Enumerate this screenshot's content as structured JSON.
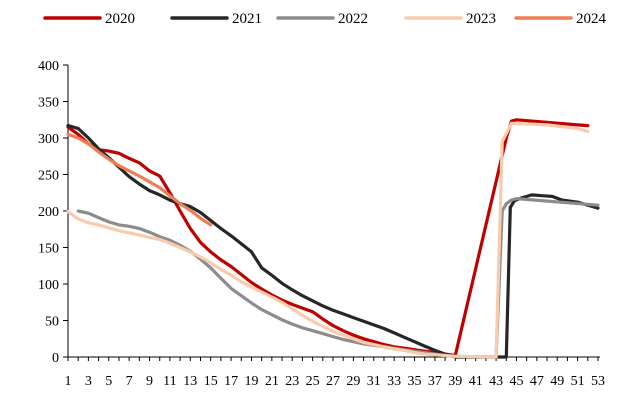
{
  "chart_data": {
    "type": "line",
    "title": "",
    "xlabel": "",
    "ylabel": "",
    "xlim": [
      1,
      53
    ],
    "ylim": [
      0,
      400
    ],
    "y_ticks": [
      0,
      50,
      100,
      150,
      200,
      250,
      300,
      350,
      400
    ],
    "x_tick_labels": [
      "1",
      "3",
      "5",
      "7",
      "9",
      "11",
      "13",
      "15",
      "17",
      "19",
      "21",
      "23",
      "25",
      "27",
      "29",
      "31",
      "33",
      "35",
      "37",
      "39",
      "41",
      "43",
      "45",
      "47",
      "49",
      "51",
      "53"
    ],
    "grid": false,
    "legend_position": "top",
    "series": [
      {
        "name": "2020",
        "color": "#c00000",
        "points": [
          [
            1,
            315
          ],
          [
            2,
            305
          ],
          [
            3,
            292
          ],
          [
            4,
            284
          ],
          [
            5,
            282
          ],
          [
            6,
            279
          ],
          [
            7,
            272
          ],
          [
            8,
            266
          ],
          [
            9,
            255
          ],
          [
            10,
            248
          ],
          [
            11,
            225
          ],
          [
            12,
            200
          ],
          [
            13,
            176
          ],
          [
            14,
            157
          ],
          [
            15,
            144
          ],
          [
            16,
            133
          ],
          [
            17,
            124
          ],
          [
            18,
            113
          ],
          [
            19,
            102
          ],
          [
            20,
            93
          ],
          [
            21,
            85
          ],
          [
            22,
            78
          ],
          [
            23,
            72
          ],
          [
            24,
            67
          ],
          [
            25,
            62
          ],
          [
            26,
            52
          ],
          [
            27,
            43
          ],
          [
            28,
            36
          ],
          [
            29,
            30
          ],
          [
            30,
            25
          ],
          [
            31,
            21
          ],
          [
            32,
            17
          ],
          [
            33,
            14
          ],
          [
            34,
            12
          ],
          [
            35,
            10
          ],
          [
            36,
            8
          ],
          [
            37,
            6
          ],
          [
            38,
            4
          ],
          [
            39,
            2
          ],
          [
            44,
            300
          ],
          [
            44.5,
            323
          ],
          [
            45,
            325
          ],
          [
            51,
            318
          ],
          [
            52,
            317
          ]
        ]
      },
      {
        "name": "2021",
        "color": "#262626",
        "points": [
          [
            1,
            317
          ],
          [
            2,
            313
          ],
          [
            3,
            300
          ],
          [
            4,
            285
          ],
          [
            5,
            273
          ],
          [
            6,
            260
          ],
          [
            7,
            247
          ],
          [
            8,
            237
          ],
          [
            9,
            228
          ],
          [
            10,
            222
          ],
          [
            11,
            215
          ],
          [
            12,
            210
          ],
          [
            13,
            206
          ],
          [
            14,
            198
          ],
          [
            15,
            187
          ],
          [
            16,
            176
          ],
          [
            17,
            166
          ],
          [
            18,
            155
          ],
          [
            19,
            144
          ],
          [
            20,
            122
          ],
          [
            21,
            112
          ],
          [
            22,
            101
          ],
          [
            23,
            92
          ],
          [
            24,
            84
          ],
          [
            25,
            77
          ],
          [
            26,
            70
          ],
          [
            27,
            64
          ],
          [
            28,
            59
          ],
          [
            29,
            54
          ],
          [
            30,
            49
          ],
          [
            31,
            44
          ],
          [
            32,
            39
          ],
          [
            33,
            33
          ],
          [
            34,
            27
          ],
          [
            35,
            21
          ],
          [
            36,
            15
          ],
          [
            37,
            9
          ],
          [
            38,
            4
          ],
          [
            39,
            0
          ],
          [
            44,
            0
          ],
          [
            44.4,
            205
          ],
          [
            44.8,
            214
          ],
          [
            45.5,
            218
          ],
          [
            46.5,
            222
          ],
          [
            47.5,
            221
          ],
          [
            48.5,
            220
          ],
          [
            49.5,
            215
          ],
          [
            51,
            212
          ],
          [
            53,
            204
          ]
        ]
      },
      {
        "name": "2022",
        "color": "#8c8c8c",
        "points": [
          [
            2,
            200
          ],
          [
            3,
            197
          ],
          [
            4,
            191
          ],
          [
            5,
            185
          ],
          [
            6,
            181
          ],
          [
            7,
            179
          ],
          [
            8,
            176
          ],
          [
            9,
            171
          ],
          [
            10,
            165
          ],
          [
            11,
            160
          ],
          [
            12,
            153
          ],
          [
            13,
            145
          ],
          [
            14,
            134
          ],
          [
            15,
            122
          ],
          [
            16,
            108
          ],
          [
            17,
            94
          ],
          [
            18,
            84
          ],
          [
            19,
            74
          ],
          [
            20,
            65
          ],
          [
            21,
            58
          ],
          [
            22,
            51
          ],
          [
            23,
            45
          ],
          [
            24,
            40
          ],
          [
            25,
            36
          ],
          [
            26,
            32
          ],
          [
            27,
            28
          ],
          [
            28,
            24
          ],
          [
            29,
            21
          ],
          [
            30,
            18
          ],
          [
            31,
            16
          ],
          [
            32,
            14
          ],
          [
            33,
            12
          ],
          [
            34,
            10
          ],
          [
            35,
            8
          ],
          [
            36,
            6
          ],
          [
            37,
            4
          ],
          [
            38,
            2
          ],
          [
            39,
            1
          ],
          [
            43,
            0
          ],
          [
            43.6,
            200
          ],
          [
            44,
            210
          ],
          [
            44.5,
            215
          ],
          [
            45,
            217
          ],
          [
            53,
            208
          ]
        ]
      },
      {
        "name": "2023",
        "color": "#f8cbad",
        "points": [
          [
            1,
            199
          ],
          [
            2,
            189
          ],
          [
            3,
            184
          ],
          [
            4,
            181
          ],
          [
            5,
            177
          ],
          [
            6,
            173
          ],
          [
            7,
            170
          ],
          [
            8,
            167
          ],
          [
            9,
            164
          ],
          [
            10,
            161
          ],
          [
            11,
            156
          ],
          [
            12,
            150
          ],
          [
            13,
            144
          ],
          [
            14,
            137
          ],
          [
            15,
            129
          ],
          [
            16,
            120
          ],
          [
            17,
            112
          ],
          [
            18,
            103
          ],
          [
            19,
            96
          ],
          [
            20,
            89
          ],
          [
            21,
            82
          ],
          [
            22,
            75
          ],
          [
            23,
            66
          ],
          [
            24,
            57
          ],
          [
            25,
            49
          ],
          [
            26,
            42
          ],
          [
            27,
            35
          ],
          [
            28,
            30
          ],
          [
            29,
            25
          ],
          [
            30,
            20
          ],
          [
            31,
            17
          ],
          [
            32,
            14
          ],
          [
            33,
            11
          ],
          [
            34,
            9
          ],
          [
            35,
            6
          ],
          [
            36,
            4
          ],
          [
            37,
            3
          ],
          [
            38,
            2
          ],
          [
            39,
            1
          ],
          [
            43,
            0
          ],
          [
            43.6,
            295
          ],
          [
            44.5,
            320
          ],
          [
            48,
            318
          ],
          [
            51,
            313
          ],
          [
            52,
            309
          ]
        ]
      },
      {
        "name": "2024",
        "color": "#ed7d53",
        "points": [
          [
            1,
            305
          ],
          [
            2,
            300
          ],
          [
            3,
            292
          ],
          [
            4,
            281
          ],
          [
            5,
            271
          ],
          [
            6,
            262
          ],
          [
            7,
            255
          ],
          [
            8,
            248
          ],
          [
            9,
            240
          ],
          [
            10,
            232
          ],
          [
            11,
            221
          ],
          [
            12,
            210
          ],
          [
            13,
            201
          ],
          [
            14,
            190
          ],
          [
            15,
            181
          ]
        ]
      }
    ]
  }
}
